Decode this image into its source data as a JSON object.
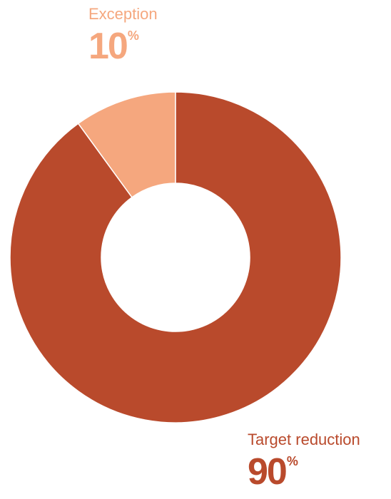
{
  "chart_data": {
    "type": "pie",
    "variant": "donut",
    "title": "",
    "categories": [
      "Exception",
      "Target reduction"
    ],
    "values": [
      10,
      90
    ],
    "value_labels": [
      "10",
      "90"
    ],
    "unit_symbol": "%",
    "colors": [
      "#f5a77e",
      "#b94a2c"
    ]
  }
}
